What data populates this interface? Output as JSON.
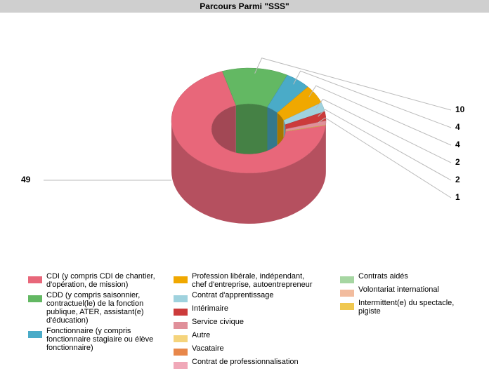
{
  "chart_data": {
    "type": "pie",
    "title": "Parcours Parmi \"SSS\"",
    "categories": [
      "CDI (y compris CDI de chantier, d'opération, de mission)",
      "CDD (y compris saisonnier, contractuel(le) de la fonction publique, ATER, assistant(e) d'éducation)",
      "Fonctionnaire (y compris fonctionnaire stagiaire ou élève fonctionnaire)",
      "Profession libérale, indépendant, chef d'entreprise, autoentrepreneur",
      "Contrat d'apprentissage",
      "Intérimaire",
      "Service civique",
      "Autre",
      "Vacataire",
      "Contrat de professionnalisation",
      "Contrats aidés",
      "Volontariat international",
      "Intermittent(e) du spectacle, pigiste"
    ],
    "values": [
      49,
      10,
      4,
      4,
      2,
      2,
      1,
      0,
      0,
      0,
      0,
      0,
      0
    ],
    "colors": [
      "#e8677a",
      "#63b863",
      "#4aabc8",
      "#f0a800",
      "#9fd2de",
      "#cc3b3b",
      "#e0909a",
      "#f5d47c",
      "#e8874a",
      "#f0a8b8",
      "#a6d6a2",
      "#f2bc9e",
      "#f0c850"
    ],
    "legend": "bottom"
  }
}
